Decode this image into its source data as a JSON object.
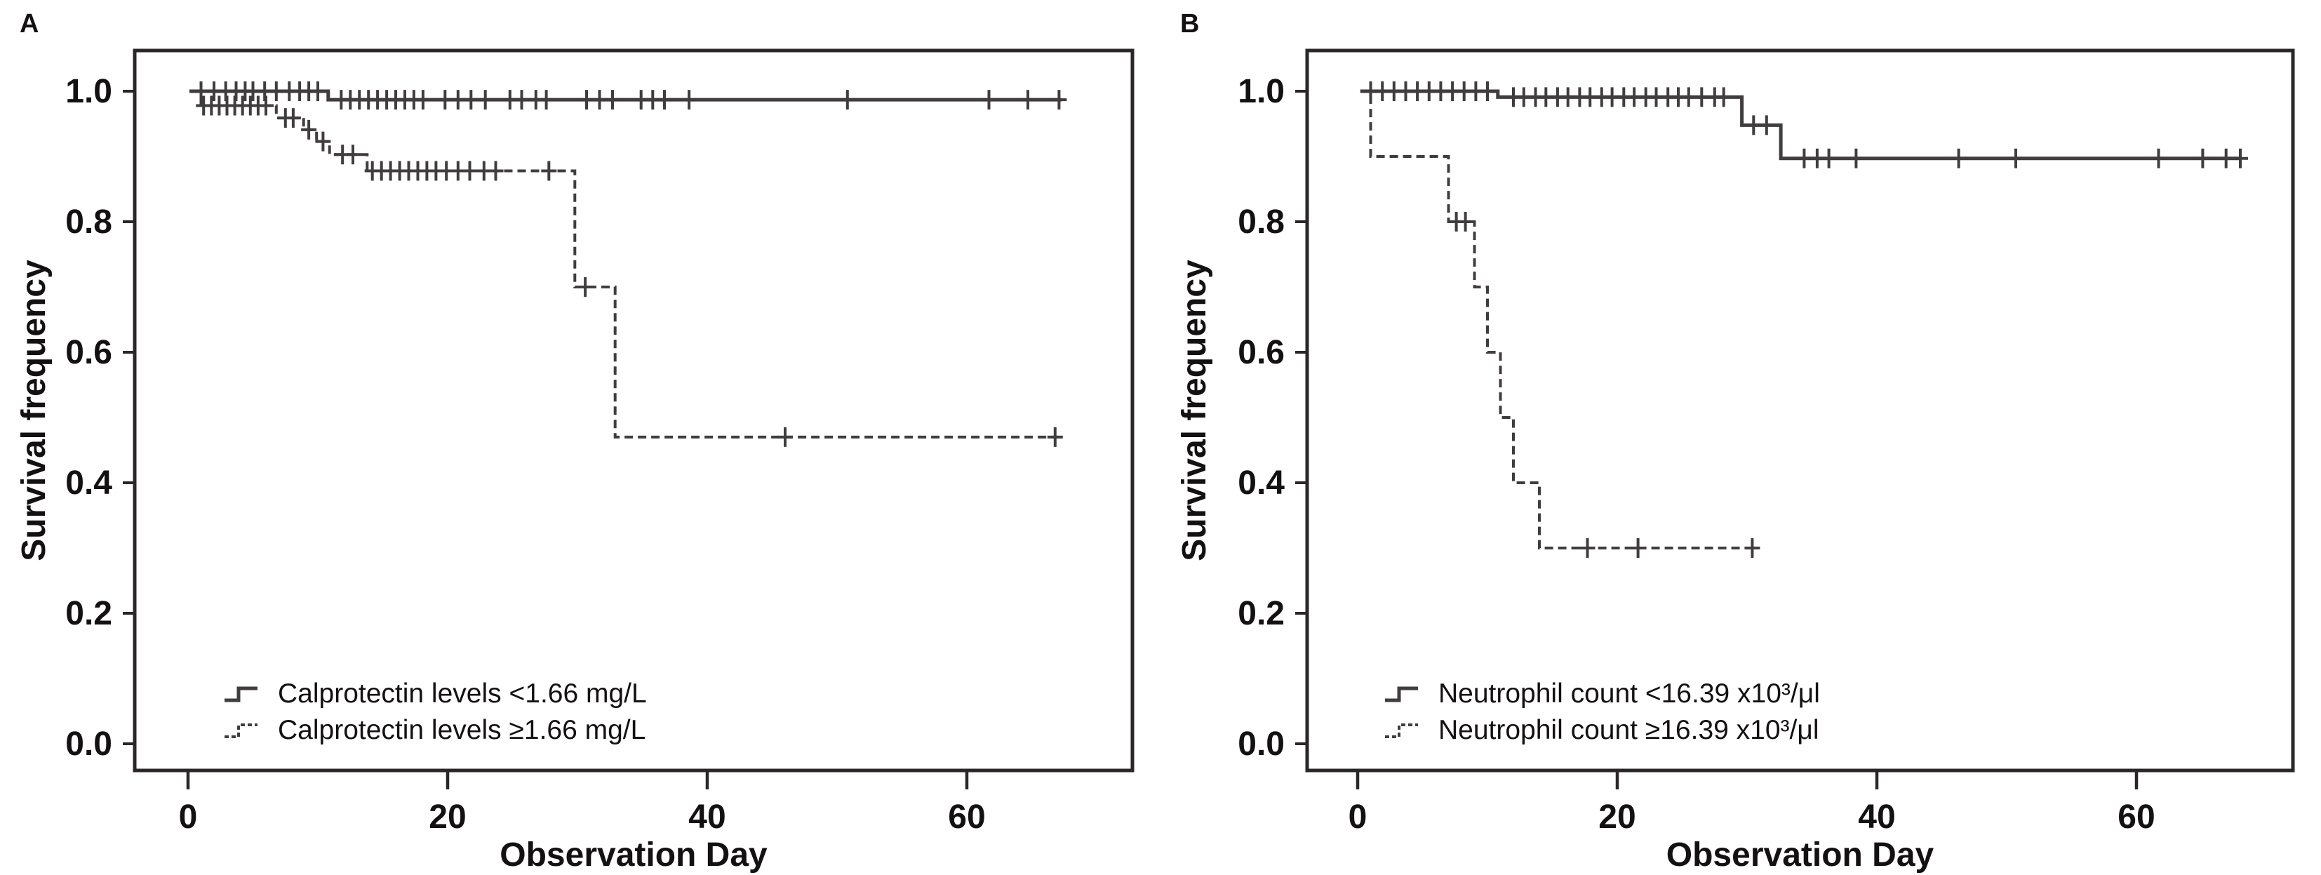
{
  "page": {
    "background": "#ffffff",
    "figure_type": "Kaplan-Meier survival curves, two panels"
  },
  "colors": {
    "axis": "#2b2728",
    "line": "#413d3e",
    "text": "#141112"
  },
  "chart_data": [
    {
      "panel_label": "A",
      "type": "line",
      "subtype": "kaplan_meier_step",
      "x_axis": {
        "title": "Observation Day",
        "range": [
          -4,
          73
        ],
        "ticks": [
          {
            "v": 0,
            "label": "0"
          },
          {
            "v": 20,
            "label": "20"
          },
          {
            "v": 40,
            "label": "40"
          },
          {
            "v": 60,
            "label": "60"
          }
        ]
      },
      "y_axis": {
        "title": "Survival frequency",
        "range": [
          -0.04,
          1.06
        ],
        "ticks": [
          {
            "v": 1.0,
            "label": "1.0"
          },
          {
            "v": 0.8,
            "label": "0.8"
          },
          {
            "v": 0.6,
            "label": "0.6"
          },
          {
            "v": 0.4,
            "label": "0.4"
          },
          {
            "v": 0.2,
            "label": "0.2"
          },
          {
            "v": 0.0,
            "label": "0.0"
          }
        ]
      },
      "series": [
        {
          "name": "Calprotectin levels <1.66 mg/L",
          "style": "solid",
          "steps": [
            [
              0.1,
              1.0
            ],
            [
              10.8,
              0.987
            ]
          ],
          "end_day": 67.3,
          "censors": [
            [
              1.0,
              1.0
            ],
            [
              2.0,
              1.0
            ],
            [
              2.9,
              1.0
            ],
            [
              3.7,
              1.0
            ],
            [
              4.4,
              1.0
            ],
            [
              5.0,
              1.0
            ],
            [
              5.9,
              1.0
            ],
            [
              6.8,
              1.0
            ],
            [
              7.8,
              1.0
            ],
            [
              8.6,
              1.0
            ],
            [
              9.3,
              1.0
            ],
            [
              10.0,
              1.0
            ],
            [
              11.8,
              0.987
            ],
            [
              12.5,
              0.987
            ],
            [
              13.2,
              0.987
            ],
            [
              13.9,
              0.987
            ],
            [
              14.6,
              0.987
            ],
            [
              15.3,
              0.987
            ],
            [
              16.0,
              0.987
            ],
            [
              16.7,
              0.987
            ],
            [
              17.4,
              0.987
            ],
            [
              18.1,
              0.987
            ],
            [
              19.8,
              0.987
            ],
            [
              20.8,
              0.987
            ],
            [
              21.8,
              0.987
            ],
            [
              22.9,
              0.987
            ],
            [
              24.8,
              0.987
            ],
            [
              25.7,
              0.987
            ],
            [
              26.8,
              0.987
            ],
            [
              27.6,
              0.987
            ],
            [
              30.7,
              0.987
            ],
            [
              31.7,
              0.987
            ],
            [
              32.7,
              0.987
            ],
            [
              34.9,
              0.987
            ],
            [
              35.8,
              0.987
            ],
            [
              36.7,
              0.987
            ],
            [
              38.6,
              0.987
            ],
            [
              50.8,
              0.987
            ],
            [
              61.7,
              0.987
            ],
            [
              64.7,
              0.987
            ],
            [
              67.1,
              0.987
            ]
          ]
        },
        {
          "name": "Calprotectin levels ≥1.66 mg/L",
          "style": "dashed",
          "steps": [
            [
              0.7,
              1.0
            ],
            [
              1.0,
              0.978
            ],
            [
              6.8,
              0.959
            ],
            [
              8.9,
              0.941
            ],
            [
              9.9,
              0.923
            ],
            [
              10.9,
              0.903
            ],
            [
              13.8,
              0.878
            ],
            [
              29.8,
              0.7
            ],
            [
              32.9,
              0.47
            ]
          ],
          "end_day": 67.0,
          "censors": [
            [
              1.2,
              0.978
            ],
            [
              1.8,
              0.978
            ],
            [
              2.4,
              0.978
            ],
            [
              3.0,
              0.978
            ],
            [
              3.6,
              0.978
            ],
            [
              4.2,
              0.978
            ],
            [
              4.8,
              0.978
            ],
            [
              5.4,
              0.978
            ],
            [
              6.0,
              0.978
            ],
            [
              7.5,
              0.959
            ],
            [
              8.1,
              0.959
            ],
            [
              9.3,
              0.941
            ],
            [
              10.4,
              0.923
            ],
            [
              11.9,
              0.903
            ],
            [
              12.7,
              0.903
            ],
            [
              14.2,
              0.878
            ],
            [
              14.9,
              0.878
            ],
            [
              15.6,
              0.878
            ],
            [
              16.3,
              0.878
            ],
            [
              17.0,
              0.878
            ],
            [
              17.7,
              0.878
            ],
            [
              18.4,
              0.878
            ],
            [
              19.1,
              0.878
            ],
            [
              19.9,
              0.878
            ],
            [
              20.8,
              0.878
            ],
            [
              21.7,
              0.878
            ],
            [
              22.8,
              0.878
            ],
            [
              23.7,
              0.878
            ],
            [
              27.8,
              0.878
            ],
            [
              30.6,
              0.7
            ],
            [
              46.0,
              0.47
            ],
            [
              66.8,
              0.47
            ]
          ]
        }
      ],
      "legend": {
        "position": "bottom-left",
        "entries": [
          {
            "label": "Calprotectin levels <1.66 mg/L",
            "style": "solid"
          },
          {
            "label": "Calprotectin levels ≥1.66 mg/L",
            "style": "dashed"
          }
        ]
      }
    },
    {
      "panel_label": "B",
      "type": "line",
      "subtype": "kaplan_meier_step",
      "x_axis": {
        "title": "Observation Day",
        "range": [
          -4,
          73
        ],
        "ticks": [
          {
            "v": 0,
            "label": "0"
          },
          {
            "v": 20,
            "label": "20"
          },
          {
            "v": 40,
            "label": "40"
          },
          {
            "v": 60,
            "label": "60"
          }
        ]
      },
      "y_axis": {
        "title": "Survival frequency",
        "range": [
          -0.04,
          1.06
        ],
        "ticks": [
          {
            "v": 1.0,
            "label": "1.0"
          },
          {
            "v": 0.8,
            "label": "0.8"
          },
          {
            "v": 0.6,
            "label": "0.6"
          },
          {
            "v": 0.4,
            "label": "0.4"
          },
          {
            "v": 0.2,
            "label": "0.2"
          },
          {
            "v": 0.0,
            "label": "0.0"
          }
        ]
      },
      "series": [
        {
          "name": "Neutrophil count <16.39 x10³/μl",
          "style": "solid",
          "steps": [
            [
              0.2,
              1.0
            ],
            [
              10.8,
              0.991
            ],
            [
              29.6,
              0.948
            ],
            [
              32.6,
              0.897
            ]
          ],
          "end_day": 68.1,
          "censors": [
            [
              1.0,
              1.0
            ],
            [
              1.9,
              1.0
            ],
            [
              2.8,
              1.0
            ],
            [
              3.7,
              1.0
            ],
            [
              4.6,
              1.0
            ],
            [
              5.5,
              1.0
            ],
            [
              6.4,
              1.0
            ],
            [
              7.3,
              1.0
            ],
            [
              8.2,
              1.0
            ],
            [
              9.1,
              1.0
            ],
            [
              10.0,
              1.0
            ],
            [
              12.0,
              0.991
            ],
            [
              12.8,
              0.991
            ],
            [
              13.7,
              0.991
            ],
            [
              14.5,
              0.991
            ],
            [
              15.4,
              0.991
            ],
            [
              16.2,
              0.991
            ],
            [
              17.1,
              0.991
            ],
            [
              17.9,
              0.991
            ],
            [
              18.8,
              0.991
            ],
            [
              19.6,
              0.991
            ],
            [
              20.5,
              0.991
            ],
            [
              21.3,
              0.991
            ],
            [
              22.2,
              0.991
            ],
            [
              23.0,
              0.991
            ],
            [
              23.9,
              0.991
            ],
            [
              24.7,
              0.991
            ],
            [
              25.5,
              0.991
            ],
            [
              26.5,
              0.991
            ],
            [
              27.5,
              0.991
            ],
            [
              28.2,
              0.991
            ],
            [
              30.5,
              0.948
            ],
            [
              31.5,
              0.948
            ],
            [
              34.4,
              0.897
            ],
            [
              35.4,
              0.897
            ],
            [
              36.3,
              0.897
            ],
            [
              38.4,
              0.897
            ],
            [
              46.3,
              0.897
            ],
            [
              50.7,
              0.897
            ],
            [
              61.7,
              0.897
            ],
            [
              65.1,
              0.897
            ],
            [
              66.9,
              0.897
            ],
            [
              68.0,
              0.897
            ]
          ]
        },
        {
          "name": "Neutrophil count ≥16.39 x10³/μl",
          "style": "dashed",
          "steps": [
            [
              0.3,
              1.0
            ],
            [
              1.0,
              0.9
            ],
            [
              7.0,
              0.8
            ],
            [
              9.0,
              0.7
            ],
            [
              10.0,
              0.6
            ],
            [
              11.0,
              0.5
            ],
            [
              12.0,
              0.4
            ],
            [
              14.0,
              0.3
            ]
          ],
          "end_day": 30.8,
          "censors": [
            [
              7.6,
              0.8
            ],
            [
              8.3,
              0.8
            ],
            [
              17.7,
              0.3
            ],
            [
              21.6,
              0.3
            ],
            [
              30.4,
              0.3
            ]
          ]
        }
      ],
      "legend": {
        "position": "bottom-left",
        "entries": [
          {
            "label": "Neutrophil count <16.39 x10³/μl",
            "style": "solid"
          },
          {
            "label": "Neutrophil count ≥16.39 x10³/μl",
            "style": "dashed"
          }
        ]
      }
    }
  ]
}
